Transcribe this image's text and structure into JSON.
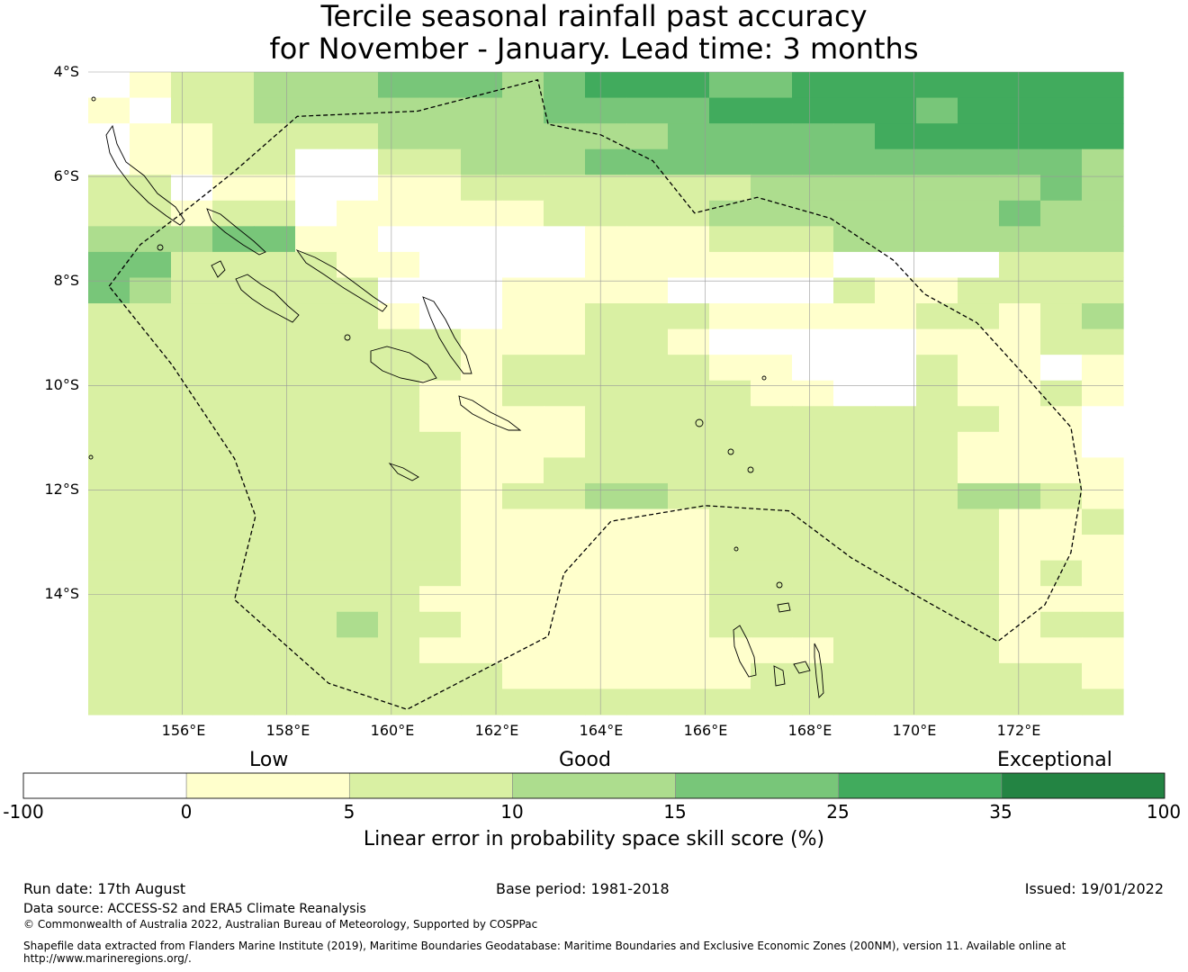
{
  "title": {
    "line1": "Tercile seasonal rainfall past accuracy",
    "line2": "for November - January. Lead time: 3 months"
  },
  "map": {
    "lat_labels": [
      "4°S",
      "6°S",
      "8°S",
      "10°S",
      "12°S",
      "14°S"
    ],
    "lon_labels": [
      "156°E",
      "158°E",
      "160°E",
      "162°E",
      "164°E",
      "166°E",
      "168°E",
      "170°E",
      "172°E"
    ],
    "lon_range": [
      154.2,
      174.0
    ],
    "lat_range": [
      -4.0,
      -16.3
    ],
    "grid_spacing_deg": 0.8333,
    "skill_grid": [
      "0122333444345554455555555",
      "1022333333344445555545555",
      "0112222333333344444555555",
      "0112200223334444444444443",
      "2201100112222222333333343",
      "2212201111122223333333433",
      "3334411000001112223333333",
      "4422221100001111110000222",
      "4322222000111100002112222",
      "2222222100112221111122123",
      "2222222221112210000011122",
      "2222222221222221100021101",
      "2222222211222222110021121",
      "2222222211112222222222110",
      "2222222221112222222221110",
      "2222222221122222222221111",
      "2222222221223322222223321",
      "2222222221111112222222112",
      "2222222221111112222222111",
      "2222222221111112222222121",
      "2222222211111112222222111",
      "2222223221111112222222122",
      "2222222211111111112222111",
      "2222222222111111222222221",
      "2222222222222222222222222"
    ],
    "eez_outline": [
      [
        154.6,
        -8.1
      ],
      [
        155.2,
        -7.3
      ],
      [
        156.0,
        -6.7
      ],
      [
        157.0,
        -5.9
      ],
      [
        158.2,
        -4.85
      ],
      [
        160.5,
        -4.75
      ],
      [
        162.8,
        -4.15
      ],
      [
        163.0,
        -5.0
      ],
      [
        164.0,
        -5.2
      ],
      [
        165.0,
        -5.7
      ],
      [
        165.8,
        -6.7
      ],
      [
        167.0,
        -6.4
      ],
      [
        168.4,
        -6.8
      ],
      [
        169.6,
        -7.6
      ],
      [
        170.2,
        -8.25
      ],
      [
        171.2,
        -8.8
      ],
      [
        172.2,
        -9.9
      ],
      [
        173.0,
        -10.8
      ],
      [
        173.2,
        -12.0
      ],
      [
        173.0,
        -13.2
      ],
      [
        172.5,
        -14.2
      ],
      [
        171.6,
        -14.9
      ],
      [
        170.0,
        -14.0
      ],
      [
        168.8,
        -13.3
      ],
      [
        167.6,
        -12.4
      ],
      [
        166.0,
        -12.3
      ],
      [
        164.2,
        -12.6
      ],
      [
        163.3,
        -13.6
      ],
      [
        163.0,
        -14.8
      ],
      [
        160.3,
        -16.2
      ],
      [
        158.8,
        -15.7
      ],
      [
        157.0,
        -14.1
      ],
      [
        157.4,
        -12.5
      ],
      [
        157.0,
        -11.4
      ],
      [
        155.8,
        -9.6
      ],
      [
        154.6,
        -8.1
      ]
    ]
  },
  "colorbar": {
    "categories": [
      "Low",
      "Good",
      "Exceptional"
    ],
    "bins": [
      {
        "from": "-100",
        "to": "0",
        "color": "#ffffff"
      },
      {
        "from": "0",
        "to": "5",
        "color": "#ffffcc"
      },
      {
        "from": "5",
        "to": "10",
        "color": "#d9f0a3"
      },
      {
        "from": "10",
        "to": "15",
        "color": "#addd8e"
      },
      {
        "from": "15",
        "to": "25",
        "color": "#78c679"
      },
      {
        "from": "25",
        "to": "35",
        "color": "#41ab5d"
      },
      {
        "from": "35",
        "to": "100",
        "color": "#238443"
      }
    ],
    "tick_labels": [
      "-100",
      "0",
      "5",
      "10",
      "15",
      "25",
      "35",
      "100"
    ],
    "label": "Linear error in probability space skill score (%)"
  },
  "footer": {
    "run_date": "Run date: 17th August",
    "base_period": "Base period: 1981-2018",
    "issued": "Issued: 19/01/2022",
    "data_source": "Data source: ACCESS-S2 and ERA5 Climate Reanalysis",
    "copyright": "© Commonwealth of Australia 2022, Australian Bureau of Meteorology, Supported by COSPPac",
    "shapefile_line1": "Shapefile data extracted from Flanders Marine Institute (2019), Maritime Boundaries Geodatabase: Maritime Boundaries and Exclusive Economic Zones (200NM), version 11. Available online at",
    "shapefile_line2": "http://www.marineregions.org/."
  }
}
